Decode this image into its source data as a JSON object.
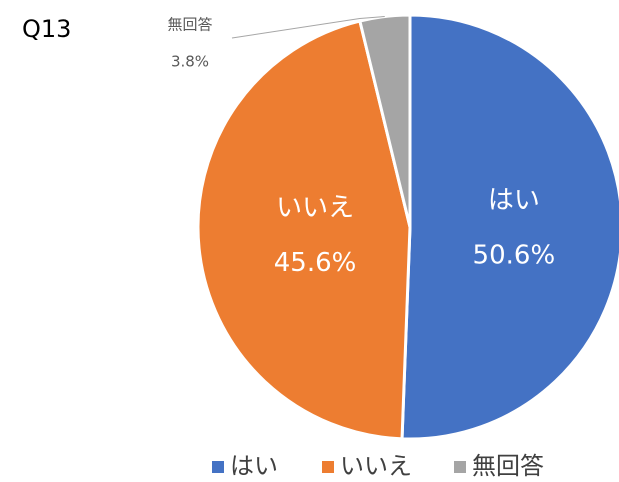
{
  "chart_data": {
    "type": "pie",
    "title": "Q13",
    "categories": [
      "はい",
      "いいえ",
      "無回答"
    ],
    "values": [
      50.6,
      45.6,
      3.8
    ],
    "value_labels": [
      "50.6%",
      "45.6%",
      "3.8%"
    ],
    "colors": [
      "#4472c4",
      "#ed7d31",
      "#a5a5a5"
    ],
    "legend": "bottom"
  }
}
